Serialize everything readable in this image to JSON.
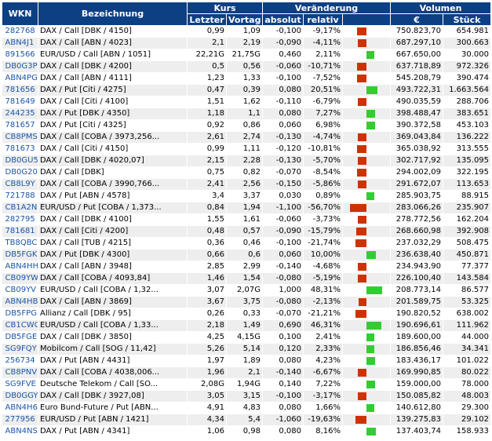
{
  "headers": {
    "wkn": "WKN",
    "bezeichnung": "Bezeichnung",
    "kurs": "Kurs",
    "letzter": "Letzter",
    "vortag": "Vortag",
    "veraenderung": "Veränderung",
    "absolut": "absolut",
    "relativ": "relativ",
    "volumen": "Volumen",
    "euro": "€",
    "stueck": "Stück"
  },
  "colors": {
    "header": "#0d3f83",
    "negative": "#cc3300",
    "positive": "#33cc33",
    "link": "#1a56a8"
  },
  "rows": [
    {
      "wkn": "282768",
      "name": "DAX / Call [DBK / 4150]",
      "letzter": "0,99",
      "vortag": "1,09",
      "absolut": "-0,100",
      "relativ": "-9,17%",
      "pct": -9.17,
      "euro": "750.823,70",
      "stueck": "654.981"
    },
    {
      "wkn": "ABN4J1",
      "name": "DAX / Call [ABN / 4023]",
      "letzter": "2,1",
      "vortag": "2,19",
      "absolut": "-0,090",
      "relativ": "-4,11%",
      "pct": -4.11,
      "euro": "687.297,10",
      "stueck": "300.663"
    },
    {
      "wkn": "891566",
      "name": "EUR/USD / Call [ABN / 1051]",
      "letzter": "22,21G",
      "vortag": "21,75G",
      "absolut": "0,460",
      "relativ": "2,11%",
      "pct": 2.11,
      "euro": "667.650,00",
      "stueck": "30.000"
    },
    {
      "wkn": "DB0G3P",
      "name": "DAX / Call [DBK / 4200]",
      "letzter": "0,5",
      "vortag": "0,56",
      "absolut": "-0,060",
      "relativ": "-10,71%",
      "pct": -10.71,
      "euro": "637.718,89",
      "stueck": "972.326"
    },
    {
      "wkn": "ABN4PG",
      "name": "DAX / Call [ABN / 4111]",
      "letzter": "1,23",
      "vortag": "1,33",
      "absolut": "-0,100",
      "relativ": "-7,52%",
      "pct": -7.52,
      "euro": "545.208,79",
      "stueck": "390.474"
    },
    {
      "wkn": "781656",
      "name": "DAX / Put [Citi / 4275]",
      "letzter": "0,47",
      "vortag": "0,39",
      "absolut": "0,080",
      "relativ": "20,51%",
      "pct": 20.51,
      "euro": "493.722,31",
      "stueck": "1.663.564"
    },
    {
      "wkn": "781649",
      "name": "DAX / Call [Citi / 4100]",
      "letzter": "1,51",
      "vortag": "1,62",
      "absolut": "-0,110",
      "relativ": "-6,79%",
      "pct": -6.79,
      "euro": "490.035,59",
      "stueck": "288.706"
    },
    {
      "wkn": "244235",
      "name": "DAX / Put [DBK / 4350]",
      "letzter": "1,18",
      "vortag": "1,1",
      "absolut": "0,080",
      "relativ": "7,27%",
      "pct": 7.27,
      "euro": "398.488,47",
      "stueck": "383.651"
    },
    {
      "wkn": "781657",
      "name": "DAX / Put [Citi / 4325]",
      "letzter": "0,92",
      "vortag": "0,86",
      "absolut": "0,060",
      "relativ": "6,98%",
      "pct": 6.98,
      "euro": "390.372,58",
      "stueck": "453.103"
    },
    {
      "wkn": "CB8PMS",
      "name": "DAX / Call [COBA / 3973,256...",
      "letzter": "2,61",
      "vortag": "2,74",
      "absolut": "-0,130",
      "relativ": "-4,74%",
      "pct": -4.74,
      "euro": "369.043,84",
      "stueck": "136.222"
    },
    {
      "wkn": "781673",
      "name": "DAX / Call [Citi / 4150]",
      "letzter": "0,99",
      "vortag": "1,11",
      "absolut": "-0,120",
      "relativ": "-10,81%",
      "pct": -10.81,
      "euro": "365.038,92",
      "stueck": "313.555"
    },
    {
      "wkn": "DB0GU5",
      "name": "DAX / Call [DBK / 4020,07]",
      "letzter": "2,15",
      "vortag": "2,28",
      "absolut": "-0,130",
      "relativ": "-5,70%",
      "pct": -5.7,
      "euro": "302.717,92",
      "stueck": "135.095"
    },
    {
      "wkn": "DB0G20",
      "name": "DAX / Call [DBK]",
      "letzter": "0,75",
      "vortag": "0,82",
      "absolut": "-0,070",
      "relativ": "-8,54%",
      "pct": -8.54,
      "euro": "294.002,09",
      "stueck": "322.195"
    },
    {
      "wkn": "CB8L9Y",
      "name": "DAX / Call [COBA / 3990,766...",
      "letzter": "2,41",
      "vortag": "2,56",
      "absolut": "-0,150",
      "relativ": "-5,86%",
      "pct": -5.86,
      "euro": "291.672,07",
      "stueck": "113.653"
    },
    {
      "wkn": "721788",
      "name": "DAX / Put [ABN / 4578]",
      "letzter": "3,4",
      "vortag": "3,37",
      "absolut": "0,030",
      "relativ": "0,89%",
      "pct": 0.89,
      "euro": "285.903,75",
      "stueck": "88.915"
    },
    {
      "wkn": "CB1A2N",
      "name": "EUR/USD / Put [COBA / 1,373...",
      "letzter": "0,84",
      "vortag": "1,94",
      "absolut": "-1,100",
      "relativ": "-56,70%",
      "pct": -56.7,
      "euro": "283.066,26",
      "stueck": "235.907"
    },
    {
      "wkn": "282795",
      "name": "DAX / Call [DBK / 4100]",
      "letzter": "1,55",
      "vortag": "1,61",
      "absolut": "-0,060",
      "relativ": "-3,73%",
      "pct": -3.73,
      "euro": "278.772,56",
      "stueck": "162.204"
    },
    {
      "wkn": "781681",
      "name": "DAX / Call [Citi / 4200]",
      "letzter": "0,48",
      "vortag": "0,57",
      "absolut": "-0,090",
      "relativ": "-15,79%",
      "pct": -15.79,
      "euro": "268.660,98",
      "stueck": "392.908"
    },
    {
      "wkn": "TB8QBC",
      "name": "DAX / Call [TUB / 4215]",
      "letzter": "0,36",
      "vortag": "0,46",
      "absolut": "-0,100",
      "relativ": "-21,74%",
      "pct": -21.74,
      "euro": "237.032,29",
      "stueck": "508.475"
    },
    {
      "wkn": "DB5FGK",
      "name": "DAX / Put [DBK / 4300]",
      "letzter": "0,66",
      "vortag": "0,6",
      "absolut": "0,060",
      "relativ": "10,00%",
      "pct": 10.0,
      "euro": "236.638,40",
      "stueck": "450.871"
    },
    {
      "wkn": "ABN4HH",
      "name": "DAX / Call [ABN / 3948]",
      "letzter": "2,85",
      "vortag": "2,99",
      "absolut": "-0,140",
      "relativ": "-4,68%",
      "pct": -4.68,
      "euro": "234.943,90",
      "stueck": "77.377"
    },
    {
      "wkn": "CB09YW",
      "name": "DAX / Call [COBA / 4093,84]",
      "letzter": "1,46",
      "vortag": "1,54",
      "absolut": "-0,080",
      "relativ": "-5,19%",
      "pct": -5.19,
      "euro": "226.100,40",
      "stueck": "143.584"
    },
    {
      "wkn": "CB09YV",
      "name": "EUR/USD / Call [COBA / 1,32...",
      "letzter": "3,07",
      "vortag": "2,07G",
      "absolut": "1,000",
      "relativ": "48,31%",
      "pct": 48.31,
      "euro": "208.773,14",
      "stueck": "86.577"
    },
    {
      "wkn": "ABN4HB",
      "name": "DAX / Call [ABN / 3869]",
      "letzter": "3,67",
      "vortag": "3,75",
      "absolut": "-0,080",
      "relativ": "-2,13%",
      "pct": -2.13,
      "euro": "201.589,75",
      "stueck": "53.325"
    },
    {
      "wkn": "DB5FPG",
      "name": "Allianz / Call [DBK / 95]",
      "letzter": "0,26",
      "vortag": "0,33",
      "absolut": "-0,070",
      "relativ": "-21,21%",
      "pct": -21.21,
      "euro": "190.820,52",
      "stueck": "638.002"
    },
    {
      "wkn": "CB1CWQ",
      "name": "EUR/USD / Call [COBA / 1,33...",
      "letzter": "2,18",
      "vortag": "1,49",
      "absolut": "0,690",
      "relativ": "46,31%",
      "pct": 46.31,
      "euro": "190.696,61",
      "stueck": "111.962"
    },
    {
      "wkn": "DB5FGE",
      "name": "DAX / Call [DBK / 3850]",
      "letzter": "4,25",
      "vortag": "4,15G",
      "absolut": "0,100",
      "relativ": "2,41%",
      "pct": 2.41,
      "euro": "189.600,00",
      "stueck": "44.000"
    },
    {
      "wkn": "SG9FQY",
      "name": "Mobilcom / Call [SOG / 11,42]",
      "letzter": "5,26",
      "vortag": "5,14",
      "absolut": "0,120",
      "relativ": "2,33%",
      "pct": 2.33,
      "euro": "186.856,46",
      "stueck": "34.341"
    },
    {
      "wkn": "256734",
      "name": "DAX / Put [ABN / 4431]",
      "letzter": "1,97",
      "vortag": "1,89",
      "absolut": "0,080",
      "relativ": "4,23%",
      "pct": 4.23,
      "euro": "183.436,17",
      "stueck": "101.022"
    },
    {
      "wkn": "CB8PNV",
      "name": "DAX / Call [COBA / 4038,006...",
      "letzter": "1,96",
      "vortag": "2,1",
      "absolut": "-0,140",
      "relativ": "-6,67%",
      "pct": -6.67,
      "euro": "169.990,85",
      "stueck": "80.022"
    },
    {
      "wkn": "SG9FVE",
      "name": "Deutsche Telekom / Call [SO...",
      "letzter": "2,08G",
      "vortag": "1,94G",
      "absolut": "0,140",
      "relativ": "7,22%",
      "pct": 7.22,
      "euro": "159.000,00",
      "stueck": "78.000"
    },
    {
      "wkn": "DB0GGY",
      "name": "DAX / Call [DBK / 3927,08]",
      "letzter": "3,05",
      "vortag": "3,15",
      "absolut": "-0,100",
      "relativ": "-3,17%",
      "pct": -3.17,
      "euro": "150.085,82",
      "stueck": "48.003"
    },
    {
      "wkn": "ABN4H6",
      "name": "Euro Bund-Future / Put [ABN...",
      "letzter": "4,91",
      "vortag": "4,83",
      "absolut": "0,080",
      "relativ": "1,66%",
      "pct": 1.66,
      "euro": "140.612,80",
      "stueck": "29.300"
    },
    {
      "wkn": "277956",
      "name": "EUR/USD / Put [ABN / 1421]",
      "letzter": "4,34",
      "vortag": "5,4",
      "absolut": "-1,060",
      "relativ": "-19,63%",
      "pct": -19.63,
      "euro": "139.275,83",
      "stueck": "29.102"
    },
    {
      "wkn": "ABN4NS",
      "name": "DAX / Put [ABN / 4341]",
      "letzter": "1,06",
      "vortag": "0,98",
      "absolut": "0,080",
      "relativ": "8,16%",
      "pct": 8.16,
      "euro": "137.403,74",
      "stueck": "158.933"
    }
  ]
}
